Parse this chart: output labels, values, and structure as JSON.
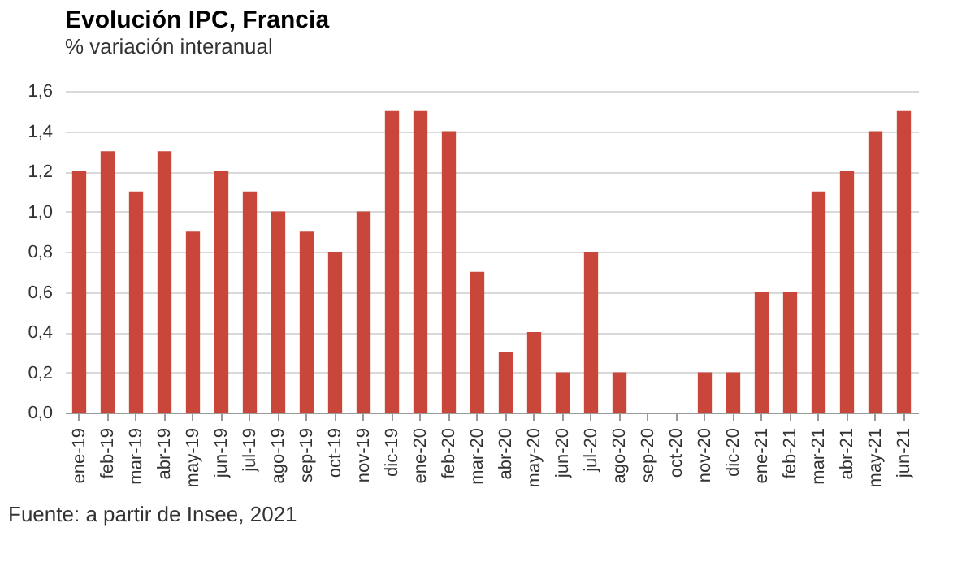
{
  "chart_data": {
    "type": "bar",
    "title": "Evolución IPC, Francia",
    "subtitle": "% variación interanual",
    "categories": [
      "ene-19",
      "feb-19",
      "mar-19",
      "abr-19",
      "may-19",
      "jun-19",
      "jul-19",
      "ago-19",
      "sep-19",
      "oct-19",
      "nov-19",
      "dic-19",
      "ene-20",
      "feb-20",
      "mar-20",
      "abr-20",
      "may-20",
      "jun-20",
      "jul-20",
      "ago-20",
      "sep-20",
      "oct-20",
      "nov-20",
      "dic-20",
      "ene-21",
      "feb-21",
      "mar-21",
      "abr-21",
      "may-21",
      "jun-21"
    ],
    "values": [
      1.2,
      1.3,
      1.1,
      1.3,
      0.9,
      1.2,
      1.1,
      1.0,
      0.9,
      0.8,
      1.0,
      1.5,
      1.5,
      1.4,
      0.7,
      0.3,
      0.4,
      0.2,
      0.8,
      0.2,
      0,
      0,
      0.2,
      0.2,
      0.6,
      0.6,
      1.1,
      1.2,
      1.4,
      1.5
    ],
    "color": "#c9473a",
    "ylim": [
      0,
      1.6
    ],
    "yticks": [
      {
        "value": 0,
        "label": "0,0"
      },
      {
        "value": 0.2,
        "label": "0,2"
      },
      {
        "value": 0.4,
        "label": "0,4"
      },
      {
        "value": 0.6,
        "label": "0,6"
      },
      {
        "value": 0.8,
        "label": "0,8"
      },
      {
        "value": 1.0,
        "label": "1,0"
      },
      {
        "value": 1.2,
        "label": "1,2"
      },
      {
        "value": 1.4,
        "label": "1,4"
      },
      {
        "value": 1.6,
        "label": "1,6"
      }
    ],
    "grid": "y",
    "annotations": [
      "Fuente: a partir de Insee, 2021"
    ]
  }
}
